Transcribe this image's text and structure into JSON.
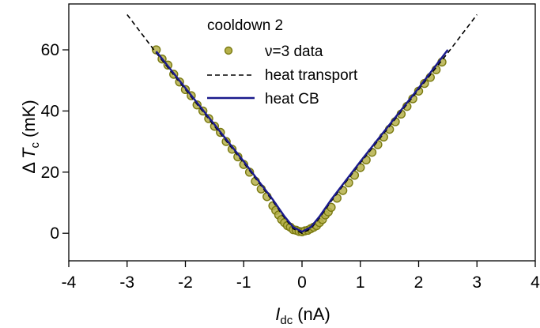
{
  "chart_data": {
    "type": "scatter",
    "title": "",
    "xlabel": {
      "symbol": "I",
      "subscript": "dc",
      "unit": "(nA)"
    },
    "ylabel": {
      "prefix": "Δ",
      "symbol": "T",
      "subscript": "c",
      "unit": "(mK)"
    },
    "xlim": [
      -4,
      4
    ],
    "ylim": [
      -9,
      75
    ],
    "xticks": [
      -4,
      -3,
      -2,
      -1,
      0,
      1,
      2,
      3,
      4
    ],
    "yticks": [
      0,
      20,
      40,
      60
    ],
    "grid": false,
    "legend": {
      "placement": "top-center",
      "title": "cooldown 2",
      "entries": [
        {
          "label": "ν=3 data",
          "style": "marker"
        },
        {
          "label": "heat transport",
          "style": "dashed"
        },
        {
          "label": "heat CB",
          "style": "solid"
        }
      ]
    },
    "series": [
      {
        "name": "ν=3 data",
        "kind": "scatter",
        "color": "#b5b04a",
        "edge_color": "#7a7a10",
        "x": [
          -2.5,
          -2.4,
          -2.3,
          -2.2,
          -2.1,
          -2.0,
          -1.9,
          -1.8,
          -1.7,
          -1.6,
          -1.5,
          -1.4,
          -1.3,
          -1.2,
          -1.1,
          -1.0,
          -0.9,
          -0.8,
          -0.7,
          -0.6,
          -0.5,
          -0.45,
          -0.4,
          -0.35,
          -0.3,
          -0.25,
          -0.2,
          -0.15,
          -0.1,
          -0.05,
          0.0,
          0.05,
          0.1,
          0.15,
          0.2,
          0.25,
          0.3,
          0.35,
          0.4,
          0.45,
          0.5,
          0.6,
          0.7,
          0.8,
          0.9,
          1.0,
          1.1,
          1.2,
          1.3,
          1.4,
          1.5,
          1.6,
          1.7,
          1.8,
          1.9,
          2.0,
          2.1,
          2.2,
          2.3,
          2.4
        ],
        "y": [
          60,
          57,
          55,
          52,
          49.5,
          47,
          45,
          42,
          40,
          37.5,
          35,
          33,
          30,
          27.5,
          25,
          22.5,
          20,
          17,
          14.5,
          12,
          9,
          7.5,
          6,
          4.5,
          3.5,
          2.5,
          2,
          1.2,
          1,
          0.6,
          0.5,
          0.8,
          1,
          1.5,
          2,
          2.5,
          3.5,
          4.5,
          6,
          7,
          8.5,
          11.5,
          14,
          16.5,
          19,
          21.5,
          24,
          26.5,
          29,
          31.5,
          34,
          36.5,
          39,
          41.5,
          44,
          46.5,
          49,
          51,
          53.5,
          56
        ]
      },
      {
        "name": "heat transport",
        "kind": "line",
        "style": "dashed",
        "color": "#000000",
        "x": [
          -3.0,
          -2.5,
          -2.0,
          -1.5,
          -1.0,
          -0.7,
          -0.5,
          -0.3,
          -0.15,
          0.0,
          0.15,
          0.3,
          0.5,
          0.7,
          1.0,
          1.5,
          2.0,
          2.5,
          3.0
        ],
        "y": [
          71.5,
          59,
          47,
          35,
          23,
          15.5,
          10.5,
          5,
          1.5,
          0,
          1.5,
          5,
          10.5,
          15.5,
          23,
          35,
          47,
          59,
          71.5
        ]
      },
      {
        "name": "heat CB",
        "kind": "line",
        "style": "solid",
        "color": "#1a1a8c",
        "x": [
          -2.5,
          -2.0,
          -1.5,
          -1.0,
          -0.7,
          -0.5,
          -0.3,
          -0.15,
          0.0,
          0.15,
          0.3,
          0.5,
          0.7,
          1.0,
          1.5,
          2.0,
          2.5
        ],
        "y": [
          59.5,
          47.5,
          35.5,
          23.5,
          16,
          11,
          5.5,
          2,
          0.5,
          2,
          5.5,
          11,
          16,
          23.5,
          35.5,
          47.5,
          60
        ]
      }
    ]
  }
}
